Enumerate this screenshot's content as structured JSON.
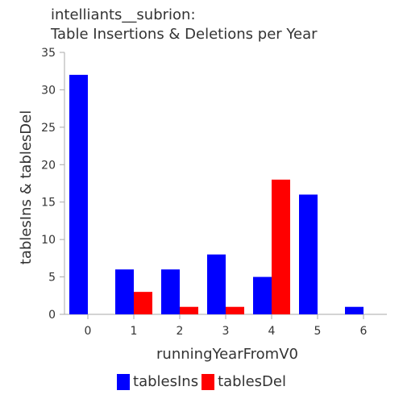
{
  "title_lines": [
    "intelliants__subrion:",
    "Table Insertions & Deletions per Year"
  ],
  "colors": {
    "tablesIns": "#0000ff",
    "tablesDel": "#ff0000",
    "axis": "#aaaaaa",
    "text": "#333333"
  },
  "chart_data": {
    "type": "bar",
    "title": "intelliants__subrion: Table Insertions & Deletions per Year",
    "xlabel": "runningYearFromV0",
    "ylabel": "tablesIns & tablesDel",
    "categories": [
      "0",
      "1",
      "2",
      "3",
      "4",
      "5",
      "6"
    ],
    "ylim": [
      0,
      35
    ],
    "yticks": [
      0,
      5,
      10,
      15,
      20,
      25,
      30,
      35
    ],
    "grid": false,
    "legend_position": "bottom",
    "series": [
      {
        "name": "tablesIns",
        "color": "#0000ff",
        "values": [
          32,
          6,
          6,
          8,
          5,
          16,
          1
        ]
      },
      {
        "name": "tablesDel",
        "color": "#ff0000",
        "values": [
          0,
          3,
          1,
          1,
          18,
          0,
          0
        ]
      }
    ]
  }
}
